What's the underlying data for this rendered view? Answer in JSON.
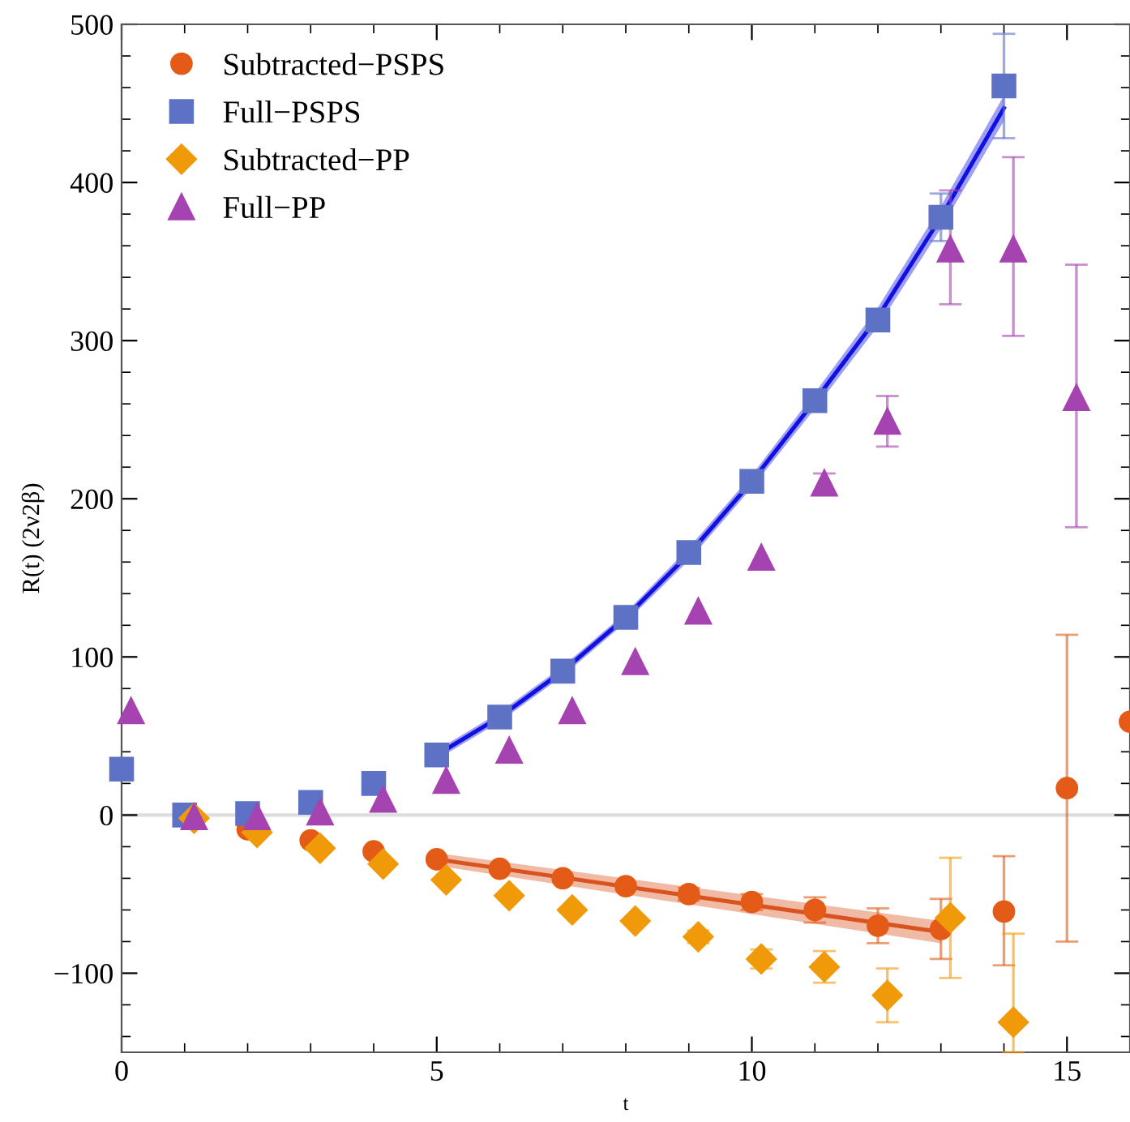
{
  "chart_data": {
    "type": "scatter",
    "xlabel": "t",
    "ylabel": "R(t) (2ν2β)",
    "xlim": [
      0,
      16
    ],
    "ylim": [
      -150,
      500
    ],
    "xticks": [
      0,
      5,
      10,
      15
    ],
    "yticks": [
      {
        "value": -100,
        "label": "−100"
      },
      0,
      100,
      200,
      300,
      400,
      500
    ],
    "legend": "top left",
    "grid": false,
    "ref_lines": [
      {
        "axis": "y",
        "value": 0,
        "color": "#dddddd"
      }
    ],
    "series": [
      {
        "name": "Subtracted−PSPS",
        "marker": "circle",
        "color": "#e35b16",
        "x": [
          2,
          3,
          4,
          5,
          6,
          7,
          8,
          9,
          10,
          11,
          12,
          13,
          14,
          15,
          16
        ],
        "values": [
          -9,
          -16,
          -23,
          -28,
          -34,
          -40,
          -45,
          -50,
          -55,
          -60,
          -70,
          -72,
          -61,
          17,
          59
        ],
        "errors": [
          null,
          null,
          null,
          null,
          null,
          null,
          null,
          4,
          5,
          8,
          11,
          19,
          [
            -95,
            -26
          ],
          [
            -80,
            114
          ],
          null
        ]
      },
      {
        "name": "Full−PSPS",
        "marker": "square",
        "color": "#5e72c5",
        "x": [
          0,
          1,
          2,
          3,
          4,
          5,
          6,
          7,
          8,
          9,
          10,
          11,
          12,
          13,
          14
        ],
        "values": [
          29,
          0,
          1,
          8,
          20,
          38,
          62,
          91,
          125,
          166,
          211,
          262,
          313,
          378,
          461
        ],
        "errors": [
          null,
          null,
          null,
          null,
          null,
          null,
          null,
          null,
          null,
          null,
          null,
          null,
          5,
          15,
          33
        ]
      },
      {
        "name": "Subtracted−PP",
        "marker": "diamond",
        "color": "#f09a0a",
        "x": [
          1.15,
          2.15,
          3.15,
          4.15,
          5.15,
          6.15,
          7.15,
          8.15,
          9.15,
          10.15,
          11.15,
          12.15,
          13.15,
          14.15
        ],
        "values": [
          -2,
          -11,
          -21,
          -31,
          -41,
          -51,
          -60,
          -67,
          -77,
          -91,
          -96,
          -114,
          -65,
          -131
        ],
        "errors": [
          null,
          null,
          null,
          null,
          null,
          null,
          null,
          null,
          4,
          6,
          10,
          17,
          38,
          [
            -150,
            -75
          ]
        ]
      },
      {
        "name": "Full−PP",
        "marker": "triangle",
        "color": "#a543b0",
        "x": [
          0.15,
          1.15,
          2.15,
          3.15,
          4.15,
          5.15,
          6.15,
          7.15,
          8.15,
          9.15,
          10.15,
          11.15,
          12.15,
          13.15,
          14.15,
          15.15
        ],
        "values": [
          66,
          -1,
          -1,
          2,
          10,
          22,
          41,
          66,
          97,
          129,
          163,
          210,
          249,
          358,
          358,
          264
        ],
        "errors": [
          null,
          null,
          null,
          null,
          null,
          null,
          null,
          null,
          null,
          null,
          null,
          6,
          16,
          [
            323,
            395
          ],
          [
            303,
            416
          ],
          [
            182,
            348
          ]
        ]
      },
      {
        "type": "line",
        "color": "#1010e0",
        "x": [
          5,
          6,
          7,
          8,
          9,
          10,
          11,
          12,
          13,
          14
        ],
        "values": [
          38,
          62,
          91,
          125,
          165,
          211,
          262,
          315,
          378,
          447
        ],
        "lower": [
          35,
          59,
          88,
          122,
          161,
          207,
          257,
          309,
          371,
          439
        ],
        "upper": [
          41,
          65,
          94,
          128,
          169,
          215,
          267,
          321,
          385,
          455
        ]
      },
      {
        "type": "line",
        "color": "#d9531e",
        "x": [
          5,
          13
        ],
        "values": [
          -28,
          -74
        ],
        "lower": [
          -32,
          -81
        ],
        "upper": [
          -24,
          -67
        ]
      }
    ]
  }
}
